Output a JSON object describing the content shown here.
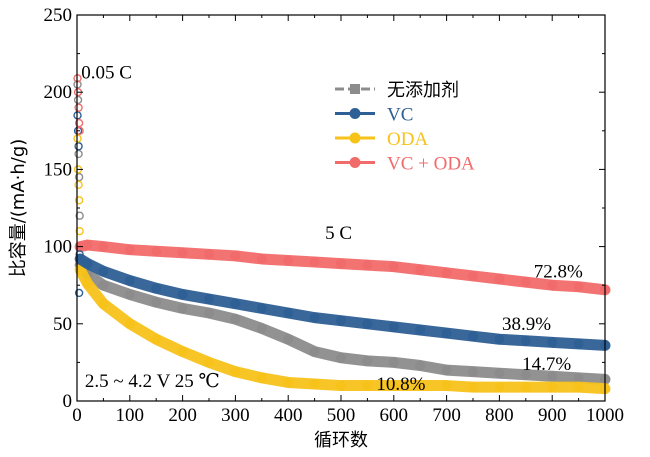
{
  "chart_data": {
    "type": "line",
    "xlabel": "循环数",
    "ylabel": "比容量/(mA·h/g)",
    "xlim": [
      0,
      1000
    ],
    "ylim": [
      0,
      250
    ],
    "xticks": [
      "0",
      "100",
      "200",
      "300",
      "400",
      "500",
      "600",
      "700",
      "800",
      "900",
      "1000"
    ],
    "yticks": [
      "0",
      "50",
      "100",
      "150",
      "200",
      "250"
    ],
    "grid": false,
    "legend_position": "top-right",
    "series": [
      {
        "name": "无添加剂",
        "color": "#8c8c8c",
        "marker": "square",
        "x": [
          6,
          20,
          50,
          100,
          150,
          200,
          250,
          300,
          350,
          400,
          450,
          500,
          550,
          600,
          650,
          700,
          750,
          800,
          850,
          900,
          950,
          1000
        ],
        "y": [
          88,
          82,
          75,
          69,
          64,
          60,
          57,
          53,
          47,
          40,
          32,
          28,
          26,
          25,
          23,
          20,
          19,
          18,
          17,
          16,
          15,
          14
        ]
      },
      {
        "name": "VC",
        "color": "#2e5f95",
        "marker": "circle",
        "x": [
          6,
          20,
          50,
          100,
          150,
          200,
          250,
          300,
          350,
          400,
          450,
          500,
          550,
          600,
          650,
          700,
          750,
          800,
          850,
          900,
          950,
          1000
        ],
        "y": [
          92,
          89,
          84,
          78,
          73,
          69,
          66,
          63,
          60,
          57,
          54,
          52,
          50,
          48,
          46,
          44,
          42,
          40,
          39,
          38,
          37,
          36
        ]
      },
      {
        "name": "ODA",
        "color": "#f7c21a",
        "marker": "circle",
        "x": [
          6,
          20,
          50,
          100,
          150,
          200,
          250,
          300,
          350,
          400,
          450,
          500,
          550,
          600,
          650,
          700,
          750,
          800,
          850,
          900,
          950,
          1000
        ],
        "y": [
          85,
          76,
          63,
          50,
          40,
          32,
          25,
          19,
          15,
          12,
          11,
          10,
          10,
          10,
          10,
          10,
          9,
          9,
          9,
          9,
          9,
          8
        ]
      },
      {
        "name": "VC + ODA",
        "color": "#f26b6b",
        "marker": "circle",
        "x": [
          6,
          20,
          50,
          100,
          150,
          200,
          250,
          300,
          350,
          400,
          450,
          500,
          550,
          600,
          650,
          700,
          750,
          800,
          850,
          900,
          950,
          1000
        ],
        "y": [
          100,
          101,
          100,
          98,
          97,
          96,
          95,
          94,
          92,
          91,
          90,
          89,
          88,
          87,
          85,
          83,
          81,
          79,
          77,
          75,
          74,
          72
        ]
      }
    ],
    "formation_points": {
      "note_text": "0.05 C",
      "x": [
        1,
        2,
        3,
        4,
        5
      ],
      "series": [
        {
          "name": "无添加剂",
          "y": [
            205,
            195,
            160,
            145,
            120
          ]
        },
        {
          "name": "VC",
          "y": [
            185,
            175,
            165,
            70,
            95
          ]
        },
        {
          "name": "ODA",
          "y": [
            170,
            150,
            140,
            130,
            110
          ]
        },
        {
          "name": "VC + ODA",
          "y": [
            209,
            200,
            190,
            180,
            175
          ]
        }
      ]
    },
    "annotations": [
      {
        "text": "0.05 C",
        "x": 8,
        "y": 209
      },
      {
        "text": "5 C",
        "x": 470,
        "y": 105
      },
      {
        "text": "72.8%",
        "x": 865,
        "y": 80
      },
      {
        "text": "38.9%",
        "x": 805,
        "y": 46
      },
      {
        "text": "14.7%",
        "x": 843,
        "y": 20
      },
      {
        "text": "10.8%",
        "x": 567,
        "y": 7
      },
      {
        "text": "2.5 ~ 4.2 V  25 ℃",
        "x": 15,
        "y": 9
      }
    ]
  }
}
